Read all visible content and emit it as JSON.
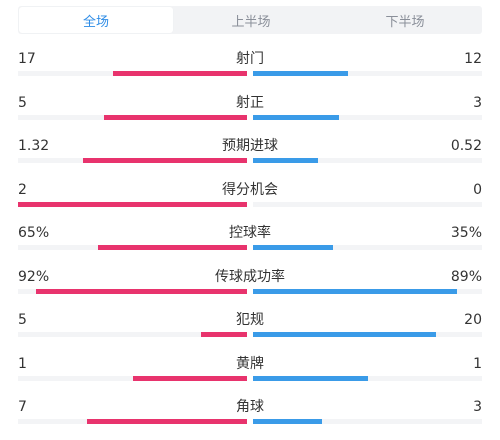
{
  "tabs": [
    {
      "label": "全场",
      "active": true
    },
    {
      "label": "上半场",
      "active": false
    },
    {
      "label": "下半场",
      "active": false
    }
  ],
  "colors": {
    "home": "#e8336d",
    "away": "#3a9be8",
    "accent": "#2e8ce6"
  },
  "stats": [
    {
      "label": "射门",
      "home": "17",
      "away": "12",
      "home_share": 0.586,
      "away_share": 0.414
    },
    {
      "label": "射正",
      "home": "5",
      "away": "3",
      "home_share": 0.625,
      "away_share": 0.375
    },
    {
      "label": "预期进球",
      "home": "1.32",
      "away": "0.52",
      "home_share": 0.717,
      "away_share": 0.283
    },
    {
      "label": "得分机会",
      "home": "2",
      "away": "0",
      "home_share": 1.0,
      "away_share": 0.0
    },
    {
      "label": "控球率",
      "home": "65%",
      "away": "35%",
      "home_share": 0.65,
      "away_share": 0.35
    },
    {
      "label": "传球成功率",
      "home": "92%",
      "away": "89%",
      "home_share": 0.92,
      "away_share": 0.89
    },
    {
      "label": "犯规",
      "home": "5",
      "away": "20",
      "home_share": 0.2,
      "away_share": 0.8
    },
    {
      "label": "黄牌",
      "home": "1",
      "away": "1",
      "home_share": 0.5,
      "away_share": 0.5
    },
    {
      "label": "角球",
      "home": "7",
      "away": "3",
      "home_share": 0.7,
      "away_share": 0.3
    }
  ]
}
